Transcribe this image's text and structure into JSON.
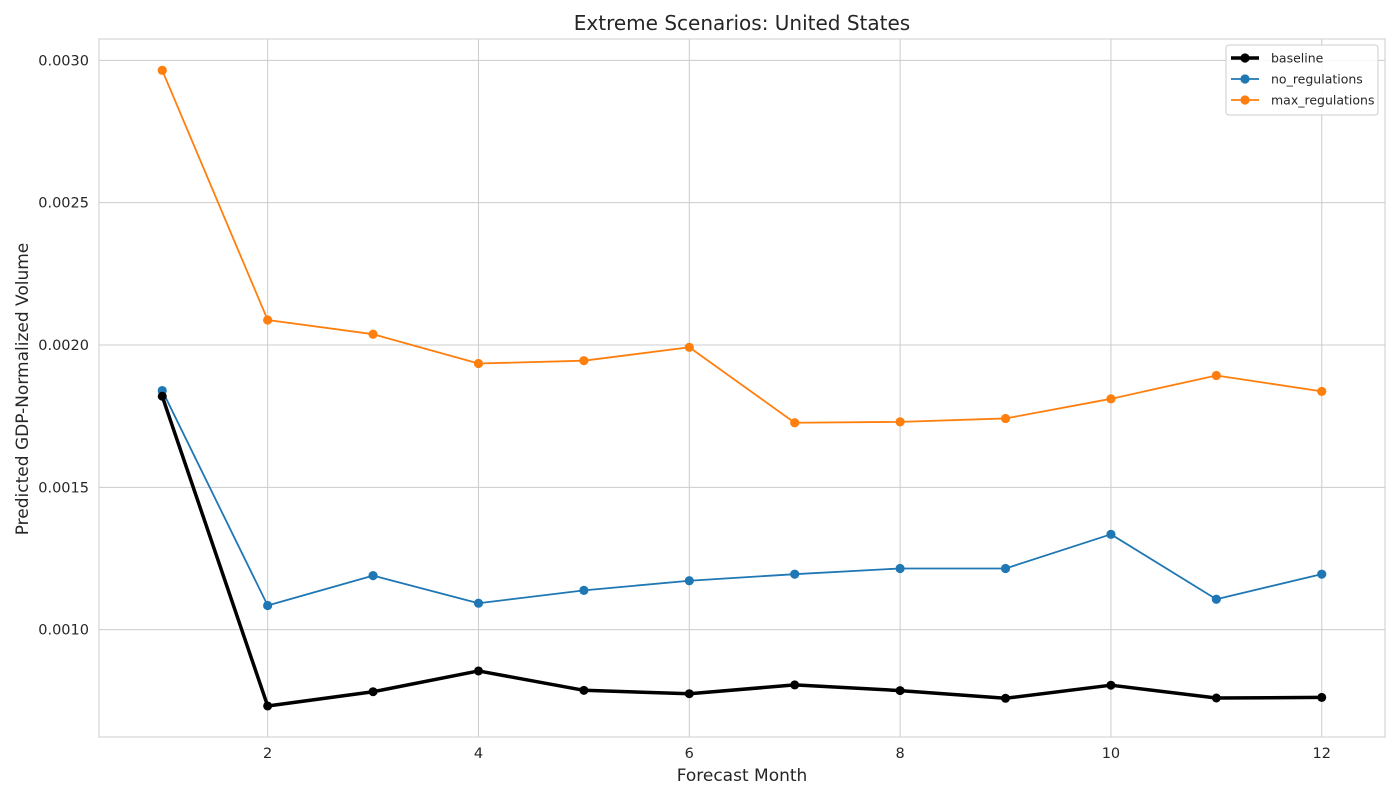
{
  "chart_data": {
    "type": "line",
    "title": "Extreme Scenarios: United States",
    "xlabel": "Forecast Month",
    "ylabel": "Predicted GDP-Normalized Volume",
    "x": [
      1,
      2,
      3,
      4,
      5,
      6,
      7,
      8,
      9,
      10,
      11,
      12
    ],
    "xlim": [
      0.4,
      12.6
    ],
    "ylim": [
      0.000623,
      0.003075
    ],
    "x_ticks": [
      2,
      4,
      6,
      8,
      10,
      12
    ],
    "y_ticks": [
      0.001,
      0.0015,
      0.002,
      0.0025,
      0.003
    ],
    "x_tick_labels": [
      "2",
      "4",
      "6",
      "8",
      "10",
      "12"
    ],
    "y_tick_labels": [
      "0.0010",
      "0.0015",
      "0.0020",
      "0.0025",
      "0.0030"
    ],
    "grid": true,
    "legend_position": "top-right",
    "series": [
      {
        "name": "baseline",
        "color": "#000000",
        "values": [
          0.00182,
          0.000732,
          0.000782,
          0.000855,
          0.000787,
          0.000775,
          0.000806,
          0.000786,
          0.000759,
          0.000805,
          0.00076,
          0.000762
        ]
      },
      {
        "name": "no_regulations",
        "color": "#1f77b4",
        "values": [
          0.00184,
          0.001085,
          0.00119,
          0.001093,
          0.001138,
          0.001172,
          0.001195,
          0.001215,
          0.001215,
          0.001335,
          0.001107,
          0.001195
        ]
      },
      {
        "name": "max_regulations",
        "color": "#ff7f0e",
        "values": [
          0.002965,
          0.002088,
          0.002038,
          0.001935,
          0.001945,
          0.001992,
          0.001727,
          0.00173,
          0.001742,
          0.001811,
          0.001893,
          0.001837
        ]
      }
    ]
  }
}
